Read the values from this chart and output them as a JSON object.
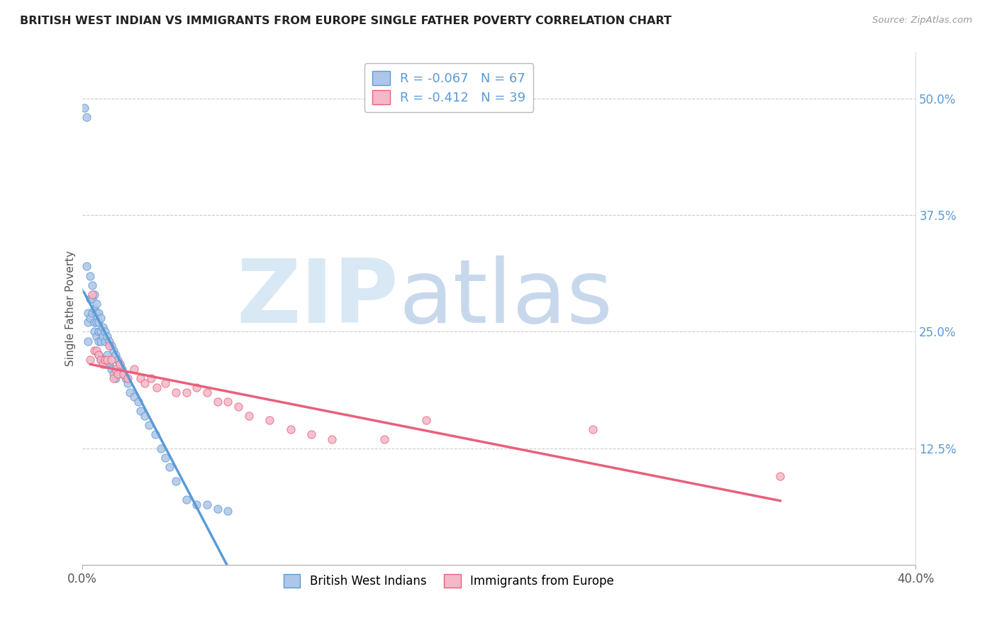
{
  "title": "BRITISH WEST INDIAN VS IMMIGRANTS FROM EUROPE SINGLE FATHER POVERTY CORRELATION CHART",
  "source": "Source: ZipAtlas.com",
  "ylabel": "Single Father Poverty",
  "right_yticklabels": [
    "12.5%",
    "25.0%",
    "37.5%",
    "50.0%"
  ],
  "right_yticks": [
    0.125,
    0.25,
    0.375,
    0.5
  ],
  "legend_upper_label1": "R = -0.067   N = 67",
  "legend_upper_label2": "R = -0.412   N = 39",
  "legend_lower_labels": [
    "British West Indians",
    "Immigrants from Europe"
  ],
  "blue_color": "#5b9bd5",
  "pink_color": "#e8607a",
  "blue_fill": "#aec6e8",
  "pink_fill": "#f5b8c8",
  "xlim": [
    0.0,
    0.4
  ],
  "ylim": [
    0.0,
    0.55
  ],
  "blue_scatter_x": [
    0.001,
    0.002,
    0.002,
    0.003,
    0.003,
    0.003,
    0.004,
    0.004,
    0.004,
    0.005,
    0.005,
    0.005,
    0.006,
    0.006,
    0.006,
    0.006,
    0.007,
    0.007,
    0.007,
    0.007,
    0.008,
    0.008,
    0.008,
    0.008,
    0.008,
    0.009,
    0.009,
    0.009,
    0.009,
    0.01,
    0.01,
    0.01,
    0.011,
    0.011,
    0.011,
    0.012,
    0.012,
    0.013,
    0.013,
    0.014,
    0.014,
    0.015,
    0.015,
    0.016,
    0.016,
    0.017,
    0.018,
    0.019,
    0.02,
    0.021,
    0.022,
    0.023,
    0.025,
    0.027,
    0.028,
    0.03,
    0.032,
    0.035,
    0.038,
    0.04,
    0.042,
    0.045,
    0.05,
    0.055,
    0.06,
    0.065,
    0.07
  ],
  "blue_scatter_y": [
    0.49,
    0.48,
    0.32,
    0.27,
    0.26,
    0.24,
    0.31,
    0.285,
    0.265,
    0.3,
    0.285,
    0.27,
    0.29,
    0.275,
    0.26,
    0.25,
    0.28,
    0.27,
    0.26,
    0.245,
    0.27,
    0.26,
    0.25,
    0.24,
    0.225,
    0.265,
    0.25,
    0.24,
    0.22,
    0.255,
    0.245,
    0.22,
    0.25,
    0.24,
    0.215,
    0.245,
    0.225,
    0.24,
    0.215,
    0.235,
    0.21,
    0.23,
    0.205,
    0.225,
    0.2,
    0.22,
    0.215,
    0.21,
    0.205,
    0.2,
    0.195,
    0.185,
    0.18,
    0.175,
    0.165,
    0.16,
    0.15,
    0.14,
    0.125,
    0.115,
    0.105,
    0.09,
    0.07,
    0.065,
    0.065,
    0.06,
    0.058
  ],
  "pink_scatter_x": [
    0.004,
    0.005,
    0.006,
    0.007,
    0.008,
    0.009,
    0.01,
    0.011,
    0.012,
    0.013,
    0.014,
    0.015,
    0.016,
    0.017,
    0.018,
    0.02,
    0.022,
    0.025,
    0.028,
    0.03,
    0.033,
    0.036,
    0.04,
    0.045,
    0.05,
    0.055,
    0.06,
    0.065,
    0.07,
    0.075,
    0.08,
    0.09,
    0.1,
    0.11,
    0.12,
    0.145,
    0.165,
    0.245,
    0.335
  ],
  "pink_scatter_y": [
    0.22,
    0.29,
    0.23,
    0.23,
    0.225,
    0.22,
    0.215,
    0.22,
    0.22,
    0.235,
    0.22,
    0.2,
    0.21,
    0.205,
    0.215,
    0.205,
    0.2,
    0.21,
    0.2,
    0.195,
    0.2,
    0.19,
    0.195,
    0.185,
    0.185,
    0.19,
    0.185,
    0.175,
    0.175,
    0.17,
    0.16,
    0.155,
    0.145,
    0.14,
    0.135,
    0.135,
    0.155,
    0.145,
    0.095
  ],
  "background_color": "#ffffff",
  "grid_color": "#cccccc",
  "watermark_zip_color": "#d8e8f4",
  "watermark_atlas_color": "#c8d8ec"
}
